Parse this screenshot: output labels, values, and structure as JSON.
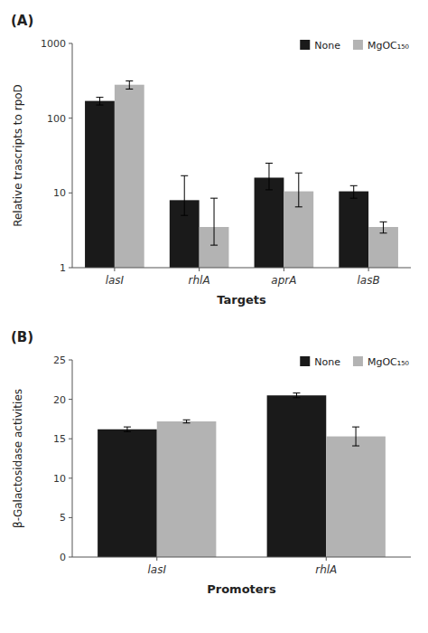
{
  "chart_data": [
    {
      "type": "bar",
      "title": "(A)",
      "xlabel": "Targets",
      "ylabel": "Relative trascripts to rpoD",
      "categories": [
        "lasI",
        "rhlA",
        "aprA",
        "lasB"
      ],
      "series": [
        {
          "name": "None",
          "color": "#1a1a1a",
          "values": [
            170,
            8.0,
            16.0,
            10.5
          ],
          "yerr_lower": [
            20,
            3.0,
            5.0,
            2.0
          ],
          "yerr_upper": [
            20,
            9.0,
            9.0,
            2.0
          ]
        },
        {
          "name": "MgOC₁₅₀",
          "color": "#b3b3b3",
          "values": [
            280,
            3.5,
            10.5,
            3.5
          ],
          "yerr_lower": [
            35,
            1.5,
            4.0,
            0.6
          ],
          "yerr_upper": [
            35,
            5.0,
            8.0,
            0.6
          ]
        }
      ],
      "log": "y",
      "ylim": [
        1,
        1000
      ],
      "yticks": [
        1,
        10,
        100,
        1000
      ],
      "legend": "upper right",
      "grid": false
    },
    {
      "type": "bar",
      "title": "(B)",
      "xlabel": "Promoters",
      "ylabel": "β-Galactosidase activities",
      "categories": [
        "lasI",
        "rhlA"
      ],
      "series": [
        {
          "name": "None",
          "color": "#1a1a1a",
          "values": [
            16.2,
            20.5
          ],
          "yerr": [
            0.3,
            0.3
          ]
        },
        {
          "name": "MgOC₁₅₀",
          "color": "#b3b3b3",
          "values": [
            17.2,
            15.3
          ],
          "yerr": [
            0.2,
            1.2
          ]
        }
      ],
      "ylim": [
        0,
        25
      ],
      "yticks": [
        0,
        5,
        10,
        15,
        20,
        25
      ],
      "legend": "upper right",
      "grid": false
    }
  ]
}
